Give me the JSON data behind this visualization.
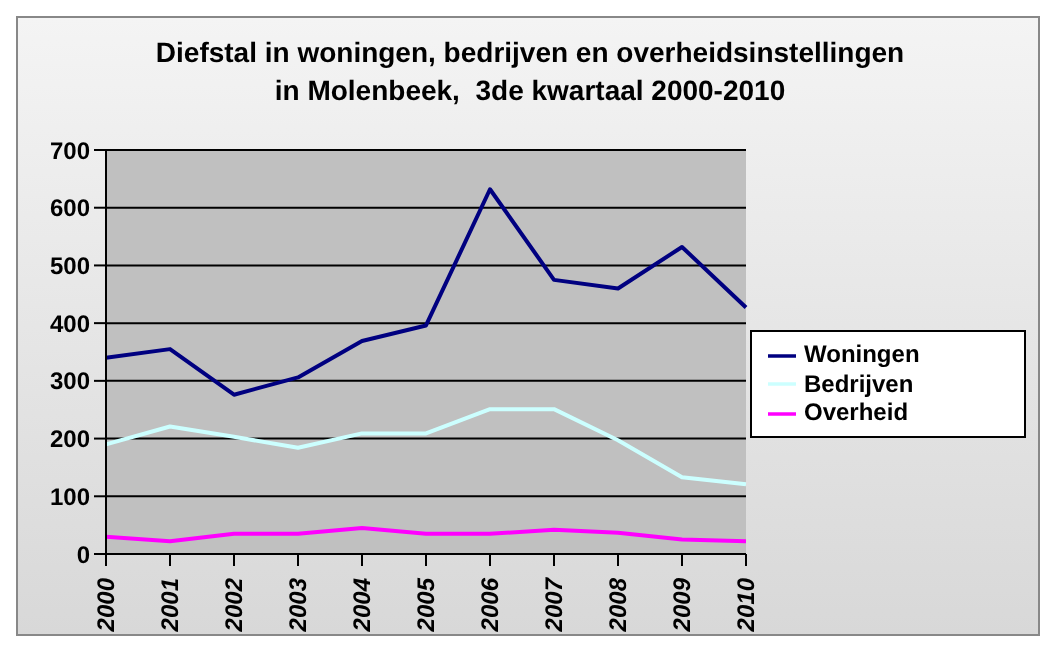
{
  "chart_data": {
    "type": "line",
    "title": "Diefstal in woningen, bedrijven en overheidsinstellingen\nin Molenbeek,  3de kwartaal 2000-2010",
    "categories": [
      "2000",
      "2001",
      "2002",
      "2003",
      "2004",
      "2005",
      "2006",
      "2007",
      "2008",
      "2009",
      "2010"
    ],
    "series": [
      {
        "name": "Woningen",
        "color": "#000080",
        "values": [
          340,
          355,
          276,
          306,
          369,
          396,
          632,
          475,
          460,
          532,
          427
        ]
      },
      {
        "name": "Bedrijven",
        "color": "#ccffff",
        "values": [
          190,
          221,
          203,
          184,
          209,
          209,
          251,
          251,
          197,
          133,
          121
        ]
      },
      {
        "name": "Overheid",
        "color": "#ff00ff",
        "values": [
          30,
          22,
          35,
          35,
          45,
          35,
          35,
          42,
          37,
          25,
          22
        ]
      }
    ],
    "ylim": [
      0,
      700
    ],
    "yticks": [
      0,
      100,
      200,
      300,
      400,
      500,
      600,
      700
    ],
    "grid": "y",
    "legend": "right",
    "marker": "none",
    "line_style": "solid"
  }
}
